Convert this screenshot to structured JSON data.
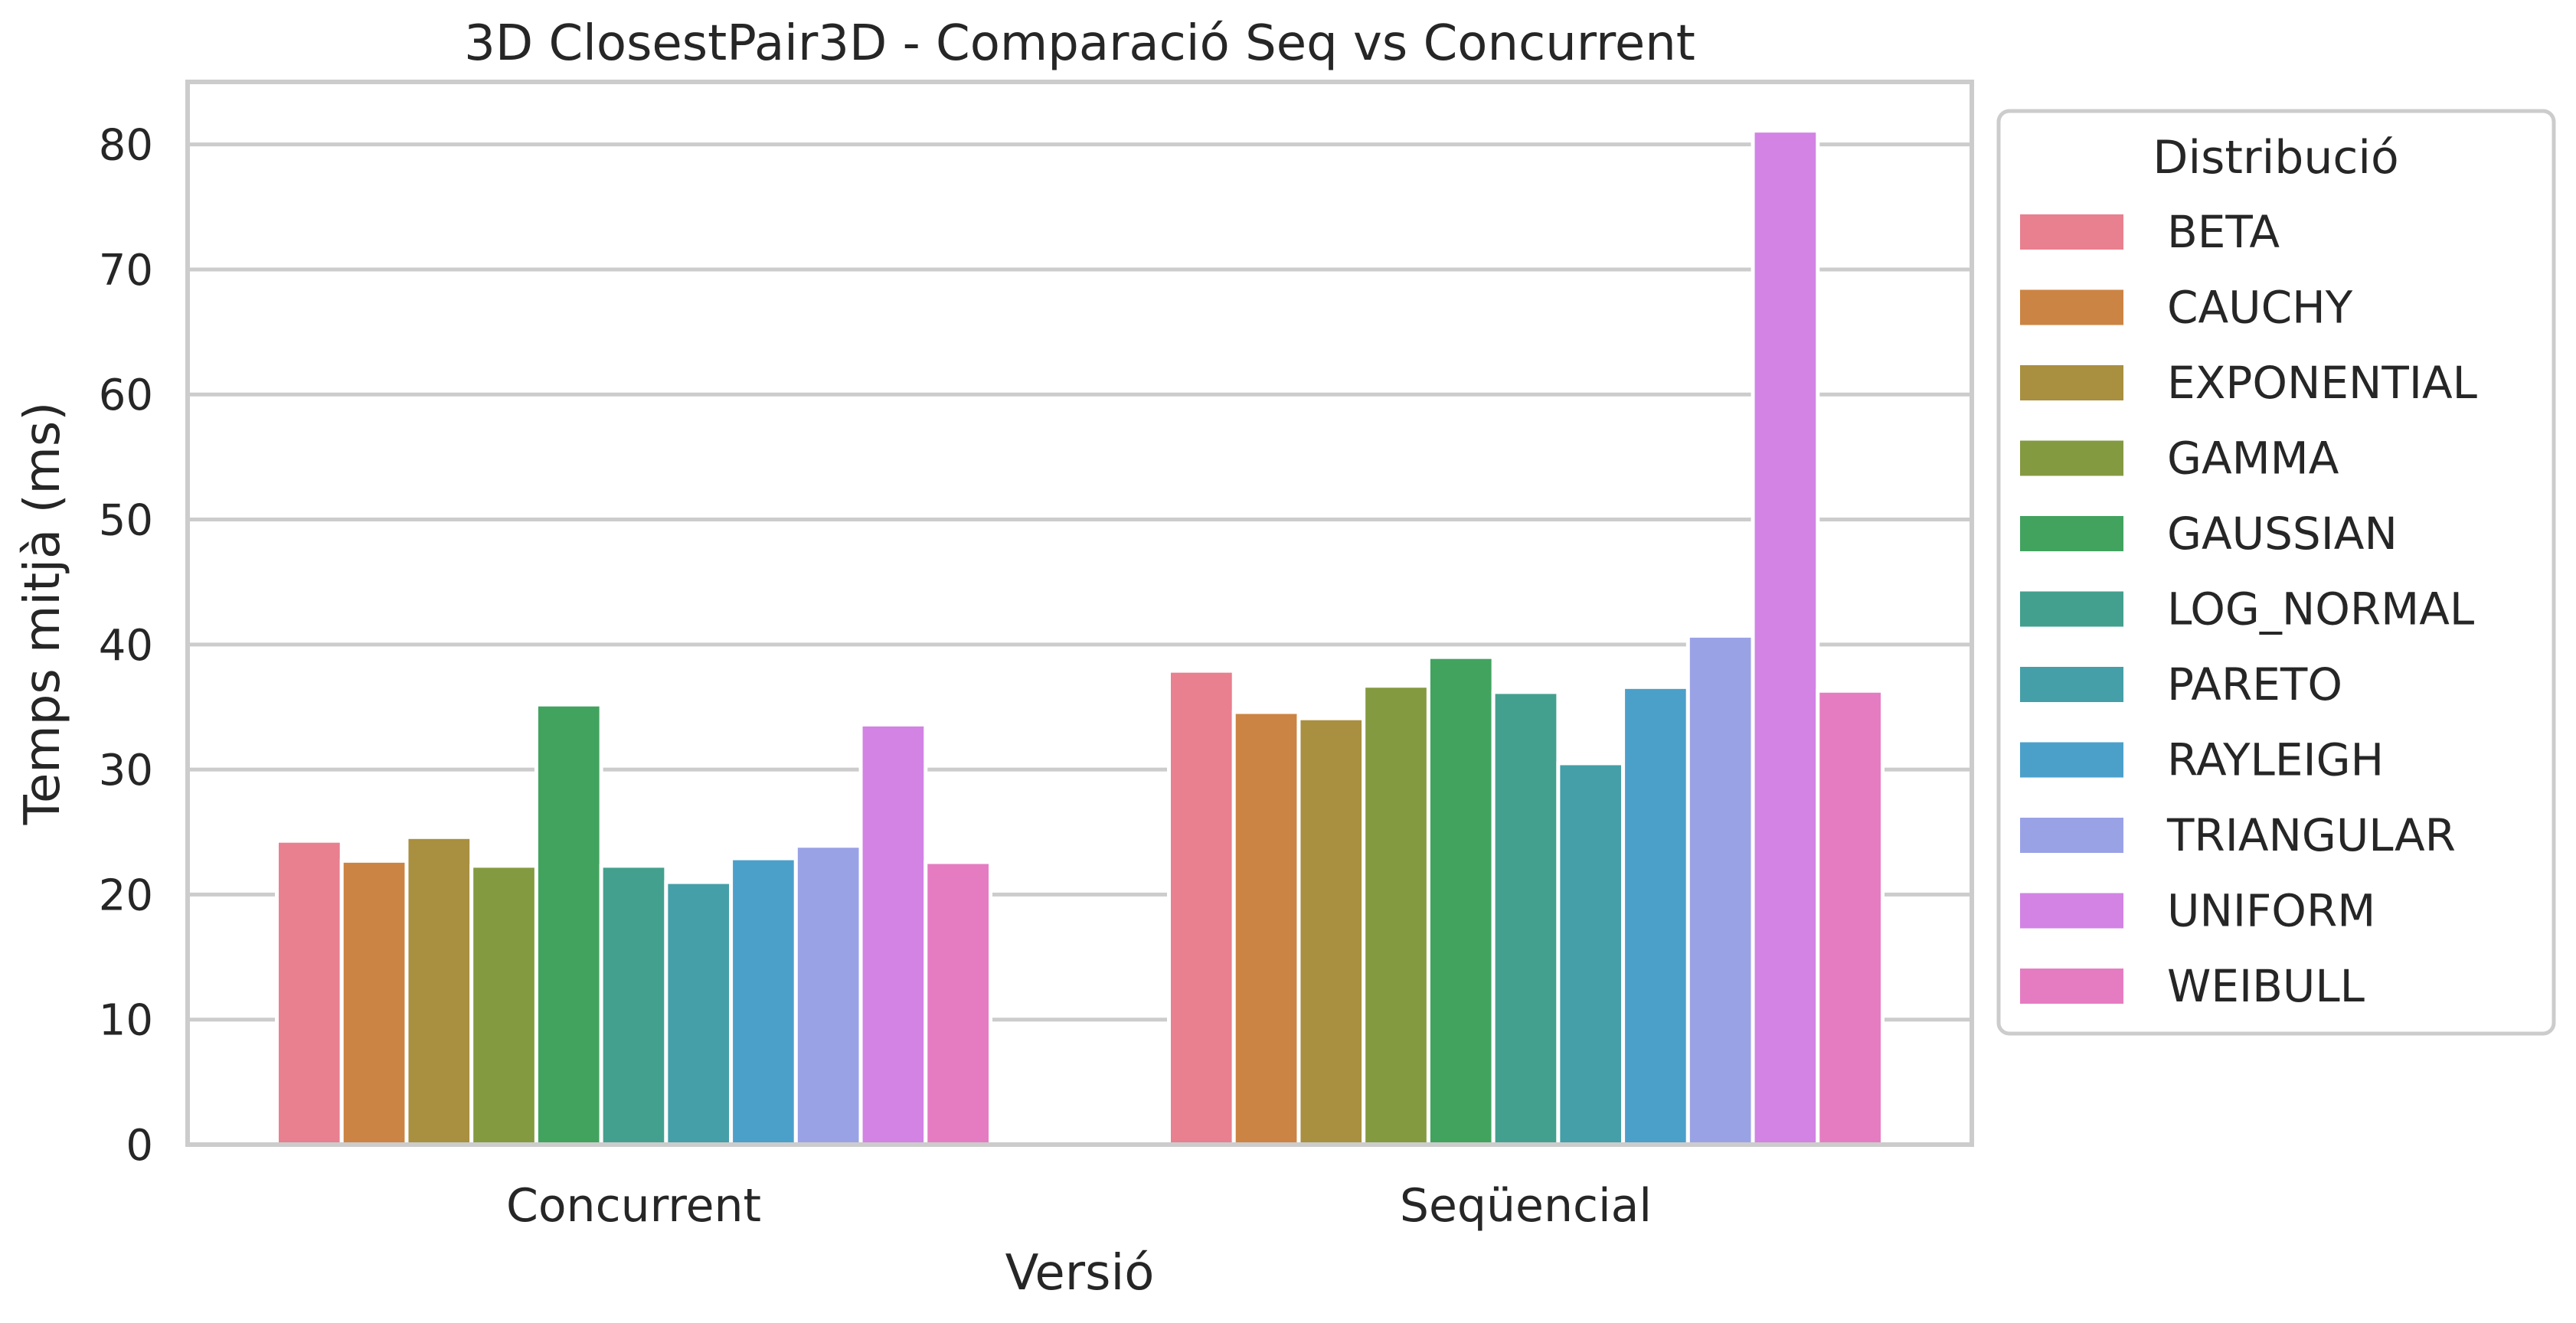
{
  "chart_data": {
    "type": "bar",
    "title": "3D ClosestPair3D - Comparació Seq vs Concurrent",
    "xlabel": "Versió",
    "ylabel": "Temps mitjà (ms)",
    "ylim": [
      0,
      85
    ],
    "yticks": [
      0,
      10,
      20,
      30,
      40,
      50,
      60,
      70,
      80
    ],
    "grid": true,
    "legend_title": "Distribució",
    "legend_position": "outside-right",
    "categories": [
      "Concurrent",
      "Seqüencial"
    ],
    "series": [
      {
        "name": "BETA",
        "color": "#e8808f",
        "values": [
          24.3,
          37.9
        ]
      },
      {
        "name": "CAUCHY",
        "color": "#cb8443",
        "values": [
          22.7,
          34.6
        ]
      },
      {
        "name": "EXPONENTIAL",
        "color": "#a98f40",
        "values": [
          24.6,
          34.1
        ]
      },
      {
        "name": "GAMMA",
        "color": "#849a41",
        "values": [
          22.3,
          36.7
        ]
      },
      {
        "name": "GAUSSIAN",
        "color": "#42a35f",
        "values": [
          35.2,
          39.0
        ]
      },
      {
        "name": "LOG_NORMAL",
        "color": "#43a08e",
        "values": [
          22.3,
          36.2
        ]
      },
      {
        "name": "PARETO",
        "color": "#449fa8",
        "values": [
          21.0,
          30.5
        ]
      },
      {
        "name": "RAYLEIGH",
        "color": "#4ba0ca",
        "values": [
          22.9,
          36.6
        ]
      },
      {
        "name": "TRIANGULAR",
        "color": "#9aa2e6",
        "values": [
          23.9,
          40.7
        ]
      },
      {
        "name": "UNIFORM",
        "color": "#d283e4",
        "values": [
          33.6,
          81.1
        ]
      },
      {
        "name": "WEIBULL",
        "color": "#e57cc2",
        "values": [
          22.6,
          36.3
        ]
      }
    ]
  }
}
